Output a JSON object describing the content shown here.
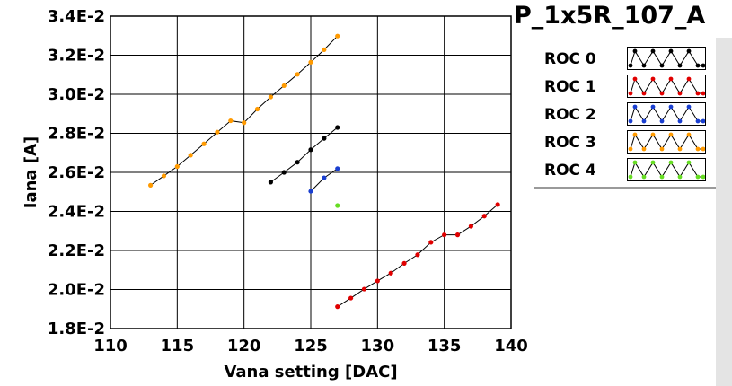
{
  "chart_data": {
    "type": "line",
    "title": "P_1x5R_107_A",
    "xlabel": "Vana setting [DAC]",
    "ylabel": "Iana [A]",
    "xlim": [
      110,
      140
    ],
    "ylim": [
      0.018,
      0.034
    ],
    "xticks": [
      "110",
      "115",
      "120",
      "125",
      "130",
      "135",
      "140"
    ],
    "yticks": [
      "1.8E-2",
      "2.0E-2",
      "2.2E-2",
      "2.4E-2",
      "2.6E-2",
      "2.8E-2",
      "3.0E-2",
      "3.2E-2",
      "3.4E-2"
    ],
    "grid": true,
    "legend_position": "right",
    "series": [
      {
        "name": "ROC 0",
        "color": "#000000",
        "x": [
          122,
          123,
          124,
          125,
          126,
          127
        ],
        "y": [
          0.0255,
          0.026,
          0.02652,
          0.02716,
          0.02774,
          0.0283
        ]
      },
      {
        "name": "ROC 1",
        "color": "#e00000",
        "x": [
          127,
          128,
          129,
          130,
          131,
          132,
          133,
          134,
          135,
          136,
          137,
          138,
          139
        ],
        "y": [
          0.01912,
          0.01956,
          0.02002,
          0.02044,
          0.02084,
          0.02134,
          0.02178,
          0.02242,
          0.0228,
          0.0228,
          0.02324,
          0.02376,
          0.02435
        ]
      },
      {
        "name": "ROC 2",
        "color": "#1a3fd0",
        "x": [
          125,
          126,
          127
        ],
        "y": [
          0.02503,
          0.02572,
          0.02619
        ]
      },
      {
        "name": "ROC 3",
        "color": "#ff9a00",
        "x": [
          113,
          114,
          115,
          116,
          117,
          118,
          119,
          120,
          121,
          122,
          123,
          124,
          125,
          126,
          127
        ],
        "y": [
          0.02534,
          0.02582,
          0.0263,
          0.02688,
          0.02746,
          0.02806,
          0.02864,
          0.02854,
          0.02924,
          0.02986,
          0.03044,
          0.03102,
          0.03164,
          0.03228,
          0.03298
        ]
      },
      {
        "name": "ROC 4",
        "color": "#66dd22",
        "x": [
          127
        ],
        "y": [
          0.0243
        ]
      }
    ]
  }
}
